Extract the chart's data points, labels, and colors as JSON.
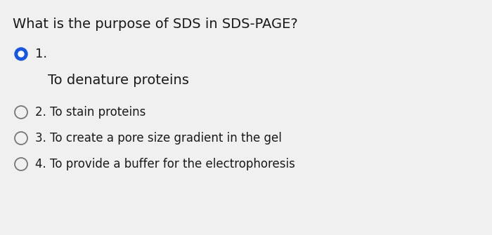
{
  "question": "What is the purpose of SDS in SDS-PAGE?",
  "options": [
    {
      "number": "1.",
      "text": "To denature proteins",
      "selected": true
    },
    {
      "number": "2.",
      "text": "To stain proteins",
      "selected": false
    },
    {
      "number": "3.",
      "text": "To create a pore size gradient in the gel",
      "selected": false
    },
    {
      "number": "4.",
      "text": "To provide a buffer for the electrophoresis",
      "selected": false
    }
  ],
  "background_color": "#f0f0f0",
  "text_color": "#1a1a1a",
  "question_fontsize": 14,
  "option_fontsize": 12,
  "selected_answer_fontsize": 14,
  "radio_selected_color": "#1a56db",
  "radio_unselected_color": "#777777"
}
